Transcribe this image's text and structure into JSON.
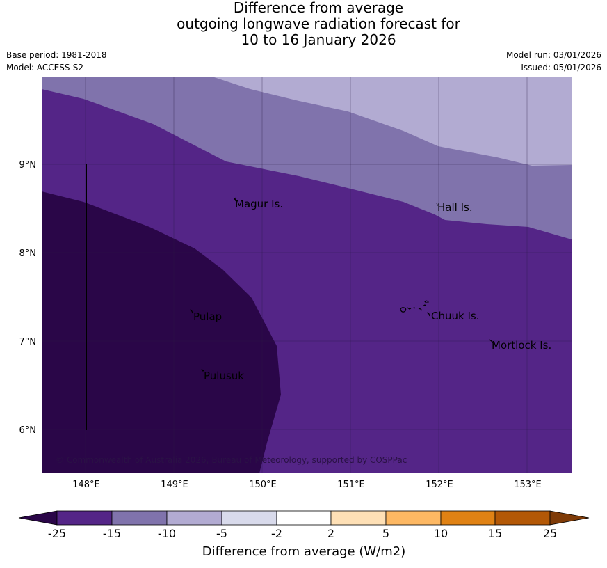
{
  "title": {
    "line1": "Difference from average",
    "line2": "outgoing longwave radiation forecast for",
    "line3": "10 to 16 January 2026"
  },
  "meta": {
    "base_period": "Base period: 1981-2018",
    "model": "Model: ACCESS-S2",
    "model_run": "Model run: 03/01/2026",
    "issued": "Issued: 05/01/2026"
  },
  "map": {
    "latitude_labels": [
      "9°N",
      "8°N",
      "7°N",
      "6°N"
    ],
    "longitude_labels": [
      "148°E",
      "149°E",
      "150°E",
      "151°E",
      "152°E",
      "153°E"
    ],
    "places": [
      "Magur Is.",
      "Hall Is.",
      "Pulap",
      "Chuuk Is.",
      "Mortlock Is.",
      "Pulusuk"
    ],
    "copyright": "© Commonwealth of Australia 2026, Bureau of Meteorology, supported by COSPPac",
    "colors": {
      "below_minus25": "#2a0648",
      "minus25_minus15": "#542587",
      "minus15_minus10": "#8073ac",
      "minus10_minus5": "#b2abd2",
      "minus5_minus2": "#d8daeb",
      "minus2_2": "#ffffff",
      "plus2_5": "#fee0b6",
      "plus5_10": "#fdb863",
      "plus10_15": "#e08214",
      "plus15_25": "#b35806",
      "above_25": "#7f3b08"
    }
  },
  "colorbar": {
    "ticks": [
      "-25",
      "-15",
      "-10",
      "-5",
      "-2",
      "2",
      "5",
      "10",
      "15",
      "25"
    ],
    "title": "Difference from average (W/m2)"
  }
}
